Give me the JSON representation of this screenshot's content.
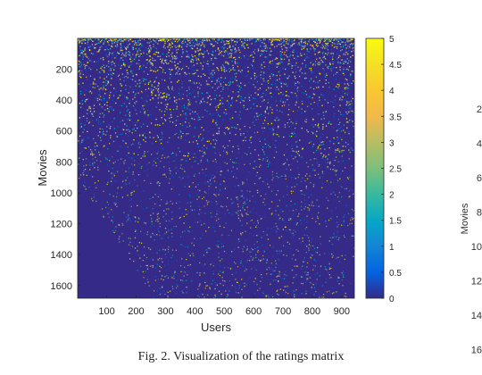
{
  "chart_data": {
    "type": "heatmap",
    "title": "",
    "xlabel": "Users",
    "ylabel": "Movies",
    "xlim": [
      1,
      943
    ],
    "ylim": [
      1,
      1682
    ],
    "y_reversed": true,
    "x_ticks": [
      100,
      200,
      300,
      400,
      500,
      600,
      700,
      800,
      900
    ],
    "y_ticks": [
      200,
      400,
      600,
      800,
      1000,
      1200,
      1400,
      1600
    ],
    "colorbar": {
      "min": 0,
      "max": 5,
      "ticks": [
        "0",
        "0.5",
        "1",
        "1.5",
        "2",
        "2.5",
        "3",
        "3.5",
        "4",
        "4.5",
        "5"
      ],
      "colormap": "parula"
    },
    "description_values": {
      "background_value": 0,
      "dense_region_movies": [
        1,
        750
      ],
      "rating_range": [
        1,
        5
      ]
    }
  },
  "caption": "Fig. 2.   Visualization of the ratings matrix",
  "side_panel": {
    "ylabel": "Movies",
    "tick_fragments": [
      "2",
      "4",
      "6",
      "8",
      "10",
      "12",
      "14",
      "16"
    ]
  },
  "colors": {
    "background_cell": "#352a87",
    "axis": "#262626"
  }
}
